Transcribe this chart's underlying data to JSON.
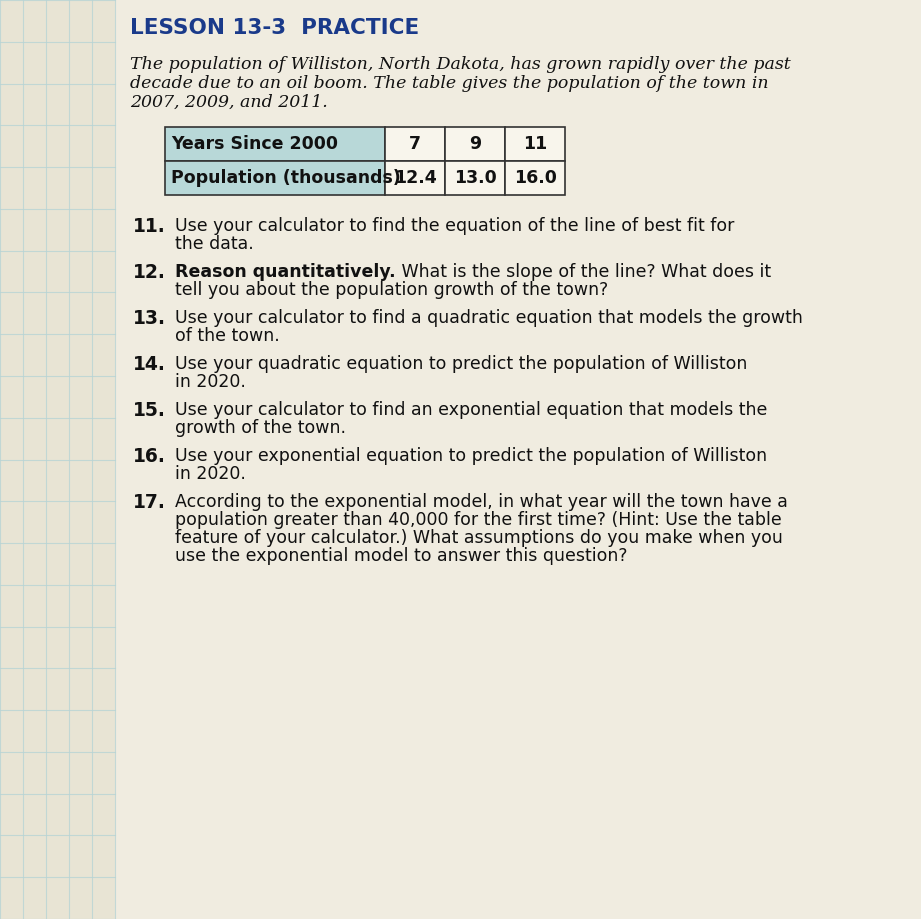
{
  "title": "LESSON 13-3  PRACTICE",
  "intro_lines": [
    "The population of Williston, North Dakota, has grown rapidly over the past",
    "decade due to an oil boom. The table gives the population of the town in",
    "2007, 2009, and 2011."
  ],
  "table_header": [
    "Years Since 2000",
    "7",
    "9",
    "11"
  ],
  "table_row": [
    "Population (thousands)",
    "12.4",
    "13.0",
    "16.0"
  ],
  "table_header_bg": "#b8d8d8",
  "table_border_color": "#333333",
  "table_bg": "#f5f2ea",
  "questions": [
    {
      "num": "11.",
      "bold_part": "",
      "text_lines": [
        "Use your calculator to find the equation of the line of best fit for",
        "the data."
      ]
    },
    {
      "num": "12.",
      "bold_part": "Reason quantitatively.",
      "text_lines": [
        " What is the slope of the line? What does it",
        "tell you about the population growth of the town?"
      ]
    },
    {
      "num": "13.",
      "bold_part": "",
      "text_lines": [
        "Use your calculator to find a quadratic equation that models the growth",
        "of the town."
      ]
    },
    {
      "num": "14.",
      "bold_part": "",
      "text_lines": [
        "Use your quadratic equation to predict the population of Williston",
        "in 2020."
      ]
    },
    {
      "num": "15.",
      "bold_part": "",
      "text_lines": [
        "Use your calculator to find an exponential equation that models the",
        "growth of the town."
      ]
    },
    {
      "num": "16.",
      "bold_part": "",
      "text_lines": [
        "Use your exponential equation to predict the population of Williston",
        "in 2020."
      ]
    },
    {
      "num": "17.",
      "bold_part": "",
      "text_lines": [
        "According to the exponential model, in what year will the town have a",
        "population greater than 40,000 for the first time? (Hint: Use the table",
        "feature of your calculator.) What assumptions do you make when you",
        "use the exponential model to answer this question?"
      ]
    }
  ],
  "page_bg": "#f0ece0",
  "grid_bg": "#e8e4d4",
  "grid_line_color": "#b8d4d4",
  "text_color": "#111111",
  "title_color": "#1a3a8a",
  "body_fontsize": 12.5,
  "title_fontsize": 15.5,
  "q_num_fontsize": 13.5,
  "q_text_fontsize": 12.5,
  "table_fontsize": 12.5
}
